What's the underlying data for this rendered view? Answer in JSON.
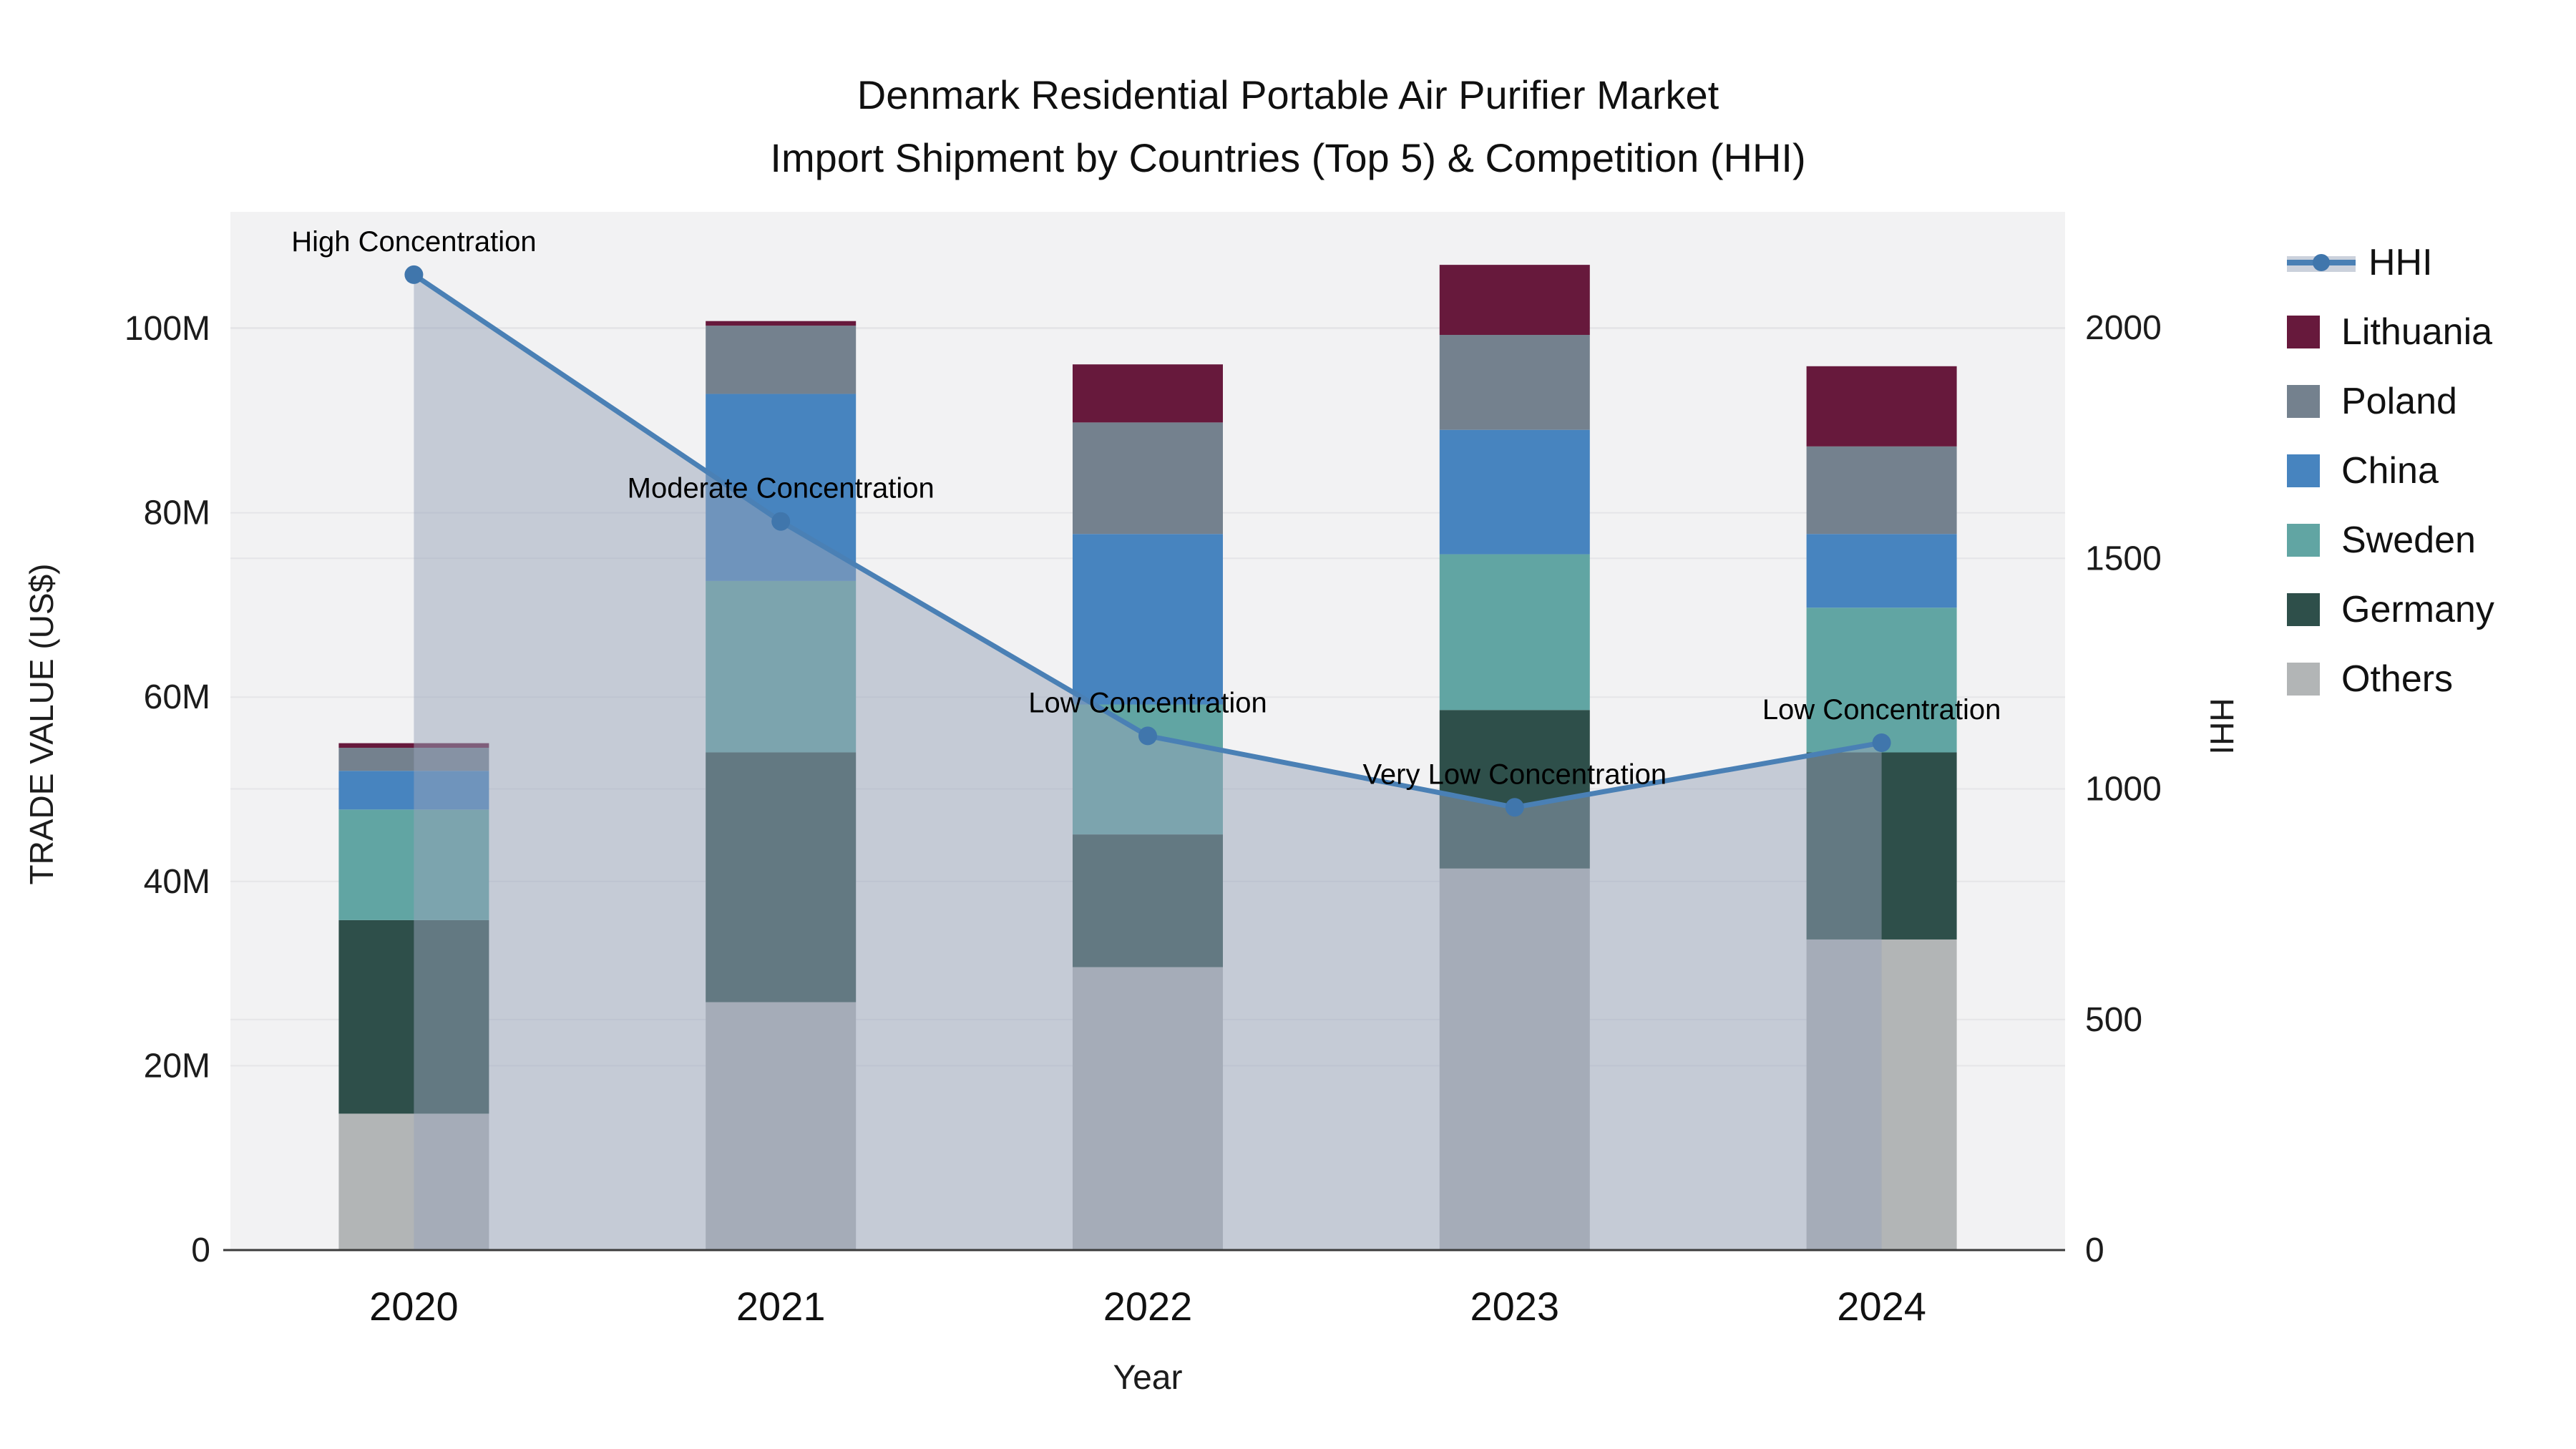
{
  "title": {
    "line1": "Denmark Residential Portable Air Purifier Market",
    "line2": "Import Shipment by Countries (Top 5) & Competition (HHI)"
  },
  "axes": {
    "x": {
      "title": "Year",
      "ticks": [
        "2020",
        "2021",
        "2022",
        "2023",
        "2024"
      ]
    },
    "y_left": {
      "title": "TRADE VALUE (US$)",
      "ticks": [
        "0",
        "20M",
        "40M",
        "60M",
        "80M",
        "100M"
      ],
      "tick_values": [
        0,
        20,
        40,
        60,
        80,
        100
      ],
      "range": [
        0,
        100
      ]
    },
    "y_right": {
      "title": "HHI",
      "ticks": [
        "0",
        "500",
        "1000",
        "1500",
        "2000"
      ],
      "tick_values": [
        0,
        500,
        1000,
        1500,
        2000
      ],
      "range": [
        0,
        2000
      ]
    }
  },
  "legend": [
    {
      "label": "HHI",
      "type": "line",
      "color": "#4a80b5"
    },
    {
      "label": "Lithuania",
      "type": "square",
      "color": "#67193c"
    },
    {
      "label": "Poland",
      "type": "square",
      "color": "#74818e"
    },
    {
      "label": "China",
      "type": "square",
      "color": "#4784bf"
    },
    {
      "label": "Sweden",
      "type": "square",
      "color": "#61a5a3"
    },
    {
      "label": "Germany",
      "type": "square",
      "color": "#2e4f4a"
    },
    {
      "label": "Others",
      "type": "square",
      "color": "#b2b5b6"
    }
  ],
  "chart_data": {
    "type": "bar",
    "subtype": "stacked-bar-with-line-overlay",
    "categories": [
      "2020",
      "2021",
      "2022",
      "2023",
      "2024"
    ],
    "unit": "Million US$",
    "series": [
      {
        "name": "Others",
        "color": "#b2b5b6",
        "values": [
          14.8,
          26.9,
          30.7,
          41.4,
          33.7
        ]
      },
      {
        "name": "Germany",
        "color": "#2e4f4a",
        "values": [
          21.0,
          27.1,
          14.4,
          17.2,
          20.3
        ]
      },
      {
        "name": "Sweden",
        "color": "#61a5a3",
        "values": [
          12.0,
          18.6,
          14.1,
          16.9,
          15.7
        ]
      },
      {
        "name": "China",
        "color": "#4784bf",
        "values": [
          4.2,
          20.3,
          18.5,
          13.5,
          8.0
        ]
      },
      {
        "name": "Poland",
        "color": "#74818e",
        "values": [
          2.5,
          7.4,
          12.1,
          10.3,
          9.5
        ]
      },
      {
        "name": "Lithuania",
        "color": "#67193c",
        "values": [
          0.5,
          0.5,
          6.3,
          7.6,
          8.7
        ]
      }
    ],
    "bar_totals": [
      55.0,
      100.8,
      96.1,
      106.9,
      95.9
    ],
    "line_series": {
      "name": "HHI",
      "axis": "right",
      "color": "#4a80b5",
      "marker_color": "#4076ac",
      "fill_color": "rgba(152,164,186,0.5)",
      "values": [
        2115,
        1580,
        1115,
        960,
        1100
      ]
    },
    "annotations": [
      {
        "x": "2020",
        "text": "High Concentration"
      },
      {
        "x": "2021",
        "text": "Moderate Concentration"
      },
      {
        "x": "2022",
        "text": "Low Concentration"
      },
      {
        "x": "2023",
        "text": "Very Low Concentration"
      },
      {
        "x": "2024",
        "text": "Low Concentration"
      }
    ],
    "xlabel": "Year",
    "ylabel_left": "TRADE VALUE (US$)",
    "ylabel_right": "HHI",
    "ylim_left": [
      0,
      100
    ],
    "ylim_right": [
      0,
      2000
    ],
    "grid": true,
    "legend_position": "right"
  },
  "colors": {
    "paper_bg": "#ffffff",
    "plot_bg": "#f2f2f3",
    "gridline": "#e5e5e8",
    "axis_line": "#3b3b3b",
    "tick_text": "#1c1c1c",
    "annotation_text": "#000000"
  }
}
